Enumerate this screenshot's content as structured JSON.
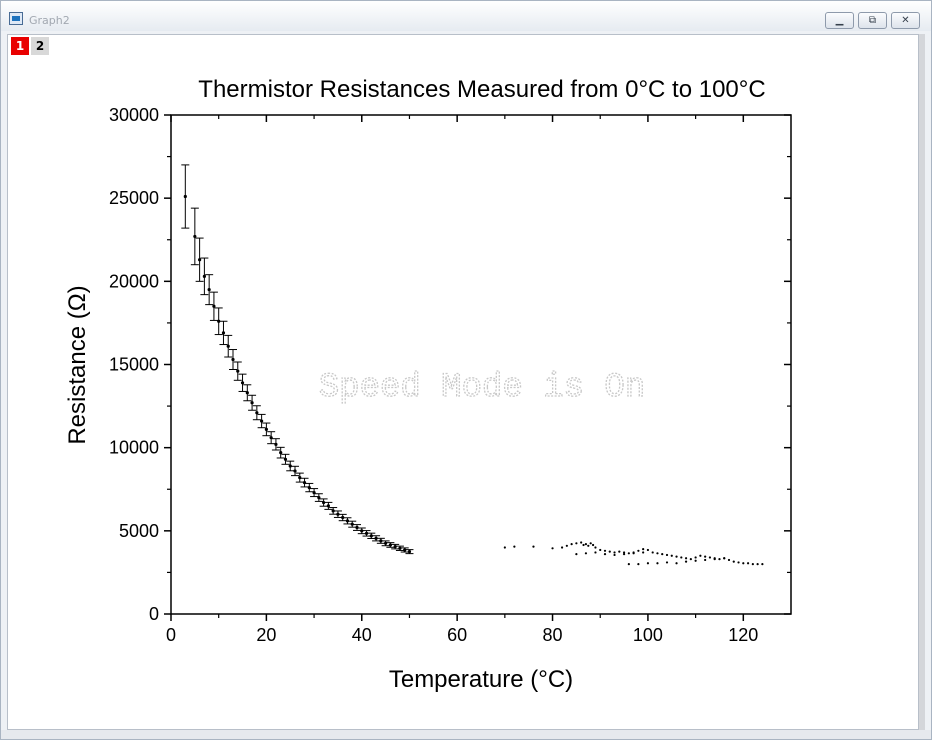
{
  "window": {
    "title": "Graph2"
  },
  "page_tabs": [
    "1",
    "2"
  ],
  "watermark": "Speed Mode is On",
  "chart_data": {
    "type": "scatter",
    "title": "Thermistor Resistances Measured from 0°C to 100°C",
    "xlabel": "Temperature (°C)",
    "ylabel": "Resistance (Ω)",
    "xlim": [
      0,
      130
    ],
    "ylim": [
      0,
      30000
    ],
    "x_ticks": [
      0,
      20,
      40,
      60,
      80,
      100,
      120
    ],
    "y_ticks": [
      0,
      5000,
      10000,
      15000,
      20000,
      25000,
      30000
    ],
    "grid": false,
    "legend": "none",
    "error_bars": true,
    "series": [
      {
        "x": [
          3,
          5,
          6,
          7,
          8,
          9,
          10,
          11,
          12,
          13,
          14,
          15,
          16,
          17,
          18,
          19,
          20,
          21,
          22,
          23,
          24,
          25,
          26,
          27,
          28,
          29,
          30,
          31,
          32,
          33,
          34,
          35,
          36,
          37,
          38,
          39,
          40,
          41,
          42,
          43,
          44,
          45,
          46,
          47,
          48,
          49,
          50
        ],
        "y": [
          25100,
          22700,
          21300,
          20300,
          19500,
          18500,
          17600,
          16900,
          16100,
          15300,
          14600,
          13900,
          13300,
          12700,
          12100,
          11600,
          11100,
          10600,
          10200,
          9700,
          9300,
          8900,
          8600,
          8200,
          7900,
          7600,
          7300,
          7000,
          6700,
          6500,
          6200,
          6000,
          5800,
          5600,
          5400,
          5200,
          5000,
          4850,
          4700,
          4550,
          4400,
          4250,
          4150,
          4050,
          3950,
          3850,
          3750
        ],
        "err": [
          1900,
          1700,
          1300,
          1100,
          900,
          850,
          800,
          700,
          650,
          600,
          550,
          520,
          480,
          450,
          420,
          400,
          380,
          360,
          340,
          320,
          300,
          290,
          280,
          270,
          260,
          250,
          240,
          230,
          220,
          210,
          200,
          195,
          190,
          185,
          180,
          175,
          170,
          165,
          160,
          155,
          150,
          145,
          140,
          135,
          130,
          125,
          120
        ]
      },
      {
        "x": [
          70,
          72,
          76,
          80,
          82,
          83,
          84,
          85,
          86,
          86.5,
          87,
          87.5,
          88,
          88.5,
          89,
          90,
          91,
          92,
          93,
          94,
          95,
          96,
          97,
          98,
          99,
          100,
          101,
          102,
          103,
          104,
          105,
          106,
          107,
          108,
          109,
          110,
          111,
          112,
          113,
          114,
          115,
          116,
          117,
          118,
          119,
          120,
          121,
          122,
          123,
          124,
          96,
          98,
          100,
          102,
          104,
          106,
          108,
          110,
          112,
          114,
          116,
          85,
          87,
          89,
          91,
          93,
          95,
          97,
          99
        ],
        "y": [
          4000,
          4050,
          4050,
          3950,
          4000,
          4100,
          4200,
          4250,
          4300,
          4150,
          4200,
          4100,
          4250,
          4150,
          4000,
          3850,
          3800,
          3750,
          3700,
          3750,
          3700,
          3650,
          3700,
          3800,
          3900,
          3850,
          3700,
          3650,
          3600,
          3550,
          3500,
          3450,
          3400,
          3350,
          3300,
          3400,
          3500,
          3450,
          3400,
          3350,
          3300,
          3350,
          3250,
          3150,
          3100,
          3050,
          3050,
          3000,
          3000,
          3000,
          3000,
          3000,
          3050,
          3050,
          3100,
          3050,
          3150,
          3200,
          3250,
          3300,
          3350,
          3600,
          3650,
          3700,
          3600,
          3550,
          3600,
          3650,
          3700
        ],
        "err": []
      }
    ]
  }
}
